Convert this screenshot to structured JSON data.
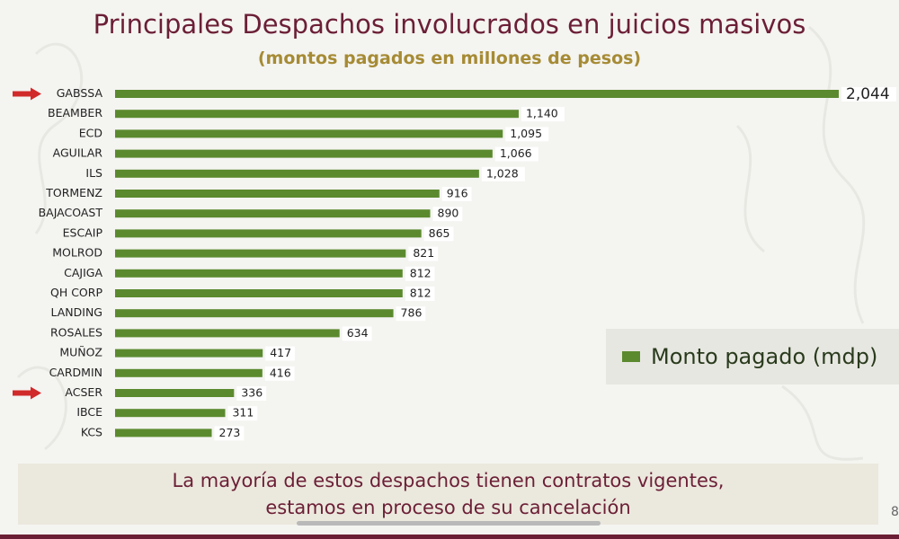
{
  "header": {
    "title": "Principales Despachos involucrados en juicios masivos",
    "subtitle": "(montos pagados en millones de pesos)"
  },
  "colors": {
    "bar": "#5b8a2e",
    "arrow": "#d12a2a",
    "title": "#6b1f36",
    "subtitle": "#a68b35"
  },
  "chart_data": {
    "type": "bar",
    "orientation": "horizontal",
    "categories": [
      "GABSSA",
      "BEAMBER",
      "ECD",
      "AGUILAR",
      "ILS",
      "TORMENZ",
      "BAJACOAST",
      "ESCAIP",
      "MOLROD",
      "CAJIGA",
      "QH CORP",
      "LANDING",
      "ROSALES",
      "MUÑOZ",
      "CARDMIN",
      "ACSER",
      "IBCE",
      "KCS"
    ],
    "values": [
      2044,
      1140,
      1095,
      1066,
      1028,
      916,
      890,
      865,
      821,
      812,
      812,
      786,
      634,
      417,
      416,
      336,
      311,
      273
    ],
    "value_labels": [
      "2,044",
      "1,140",
      "1,095",
      "1,066",
      "1,028",
      "916",
      "890",
      "865",
      "821",
      "812",
      "812",
      "786",
      "634",
      "417",
      "416",
      "336",
      "311",
      "273"
    ],
    "highlighted": [
      "GABSSA",
      "ACSER"
    ],
    "series": [
      {
        "name": "Monto pagado (mdp)"
      }
    ],
    "legend_position": "right",
    "grid": false,
    "xlim": [
      0,
      2044
    ]
  },
  "footer": {
    "line1": "La mayoría de estos despachos tienen contratos vigentes,",
    "line2": "estamos en proceso de su cancelación"
  },
  "page_number": "8"
}
